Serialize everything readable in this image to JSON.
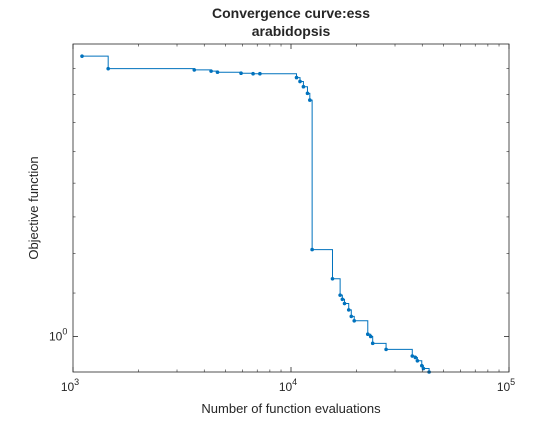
{
  "chart_data": {
    "type": "line",
    "line_style": "stairs-with-markers",
    "title_lines": [
      "Convergence curve:ess",
      "arabidopsis"
    ],
    "xlabel": "Number of function evaluations",
    "ylabel": "Objective function",
    "xscale": "log",
    "yscale": "log",
    "xlim": [
      1000,
      100000
    ],
    "ylim": [
      0.925,
      1.9
    ],
    "x_ticks": [
      {
        "base": "10",
        "exp": "3",
        "value": 1000
      },
      {
        "base": "10",
        "exp": "4",
        "value": 10000
      },
      {
        "base": "10",
        "exp": "5",
        "value": 100000
      }
    ],
    "y_ticks": [
      {
        "base": "10",
        "exp": "0",
        "value": 1
      }
    ],
    "grid": false,
    "legend": "none",
    "colors": {
      "series": "#0072BD",
      "axes": "#262626",
      "background": "#ffffff"
    },
    "series": [
      {
        "x": [
          1100,
          1450,
          3600,
          4300,
          4600,
          5900,
          6700,
          7200,
          10600,
          11000,
          11400,
          11900,
          12200,
          12500,
          15500,
          16800,
          17200,
          17600,
          18400,
          18900,
          19500,
          22500,
          23200,
          23700,
          27300,
          36000,
          37200,
          38000,
          39800,
          40500,
          43000
        ],
        "y": [
          1.85,
          1.8,
          1.795,
          1.79,
          1.786,
          1.782,
          1.78,
          1.78,
          1.765,
          1.75,
          1.73,
          1.705,
          1.68,
          1.21,
          1.135,
          1.095,
          1.085,
          1.075,
          1.06,
          1.045,
          1.035,
          1.005,
          1.0,
          0.985,
          0.972,
          0.958,
          0.955,
          0.948,
          0.938,
          0.932,
          0.925
        ]
      }
    ]
  }
}
